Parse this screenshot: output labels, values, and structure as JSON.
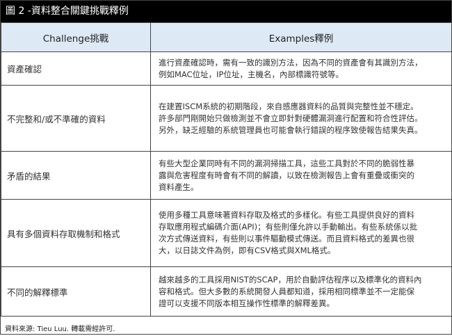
{
  "title": "圖 2 -資料整合關鍵挑戰釋例",
  "headers": {
    "challenge": "Challenge挑戰",
    "examples": "Examples釋例"
  },
  "rows": [
    {
      "challenge": "資產確認",
      "lines": [
        "進行資產確認時，需有一致的識別方法，因為不同的資產會有其識別方法，",
        "例如MAC位址，IP位址，主機名，內部標識符號等。"
      ]
    },
    {
      "challenge": "不完整和/或不準確的資料",
      "lines": [
        "在建置ISCM系統的初期階段，來自感應器資料的品質與完整性並不穩定。",
        "許多部門剛開始只做檢測並不會立即針對硬體漏洞進行配置和符合性評估。",
        "另外，缺乏經驗的系統管理員也可能會執行錯誤的程序致使報告結果失真。"
      ]
    },
    {
      "challenge": "矛盾的結果",
      "lines": [
        "有些大型企業同時有不同的漏洞掃描工具，這些工具對於不同的脆弱性暴",
        "露與危害程度有時會有不同的解讀，以致在檢測報告上會有重疊或衝突的",
        "資料產生。"
      ]
    },
    {
      "challenge": "具有多個資料存取機制和格式",
      "lines": [
        "使用多種工具意味著資料存取及格式的多樣化。有些工具提供良好的資料",
        "存取應用程式編碼介面(API)；有些則僅允許以手動輸出。有些系統係以批",
        "次方式傳送資料，有些則以事件驅動模式傳送。而且資料格式的差異也很",
        "大，以日誌文件為例，即有CSV格式與XML格式。"
      ]
    },
    {
      "challenge": "不同的解釋標準",
      "lines": [
        "越來越多的工具採用NIST的SCAP，用於自動評估程序以及標準化的資料內",
        "容和格式。但大多數的系統開發人員都知道，採用相同標準並不一定能保",
        "證可以支援不同版本相互操作性標準的解釋差異。"
      ]
    }
  ],
  "footer": "資料來源: Tieu Luu. 轉載需經許可."
}
